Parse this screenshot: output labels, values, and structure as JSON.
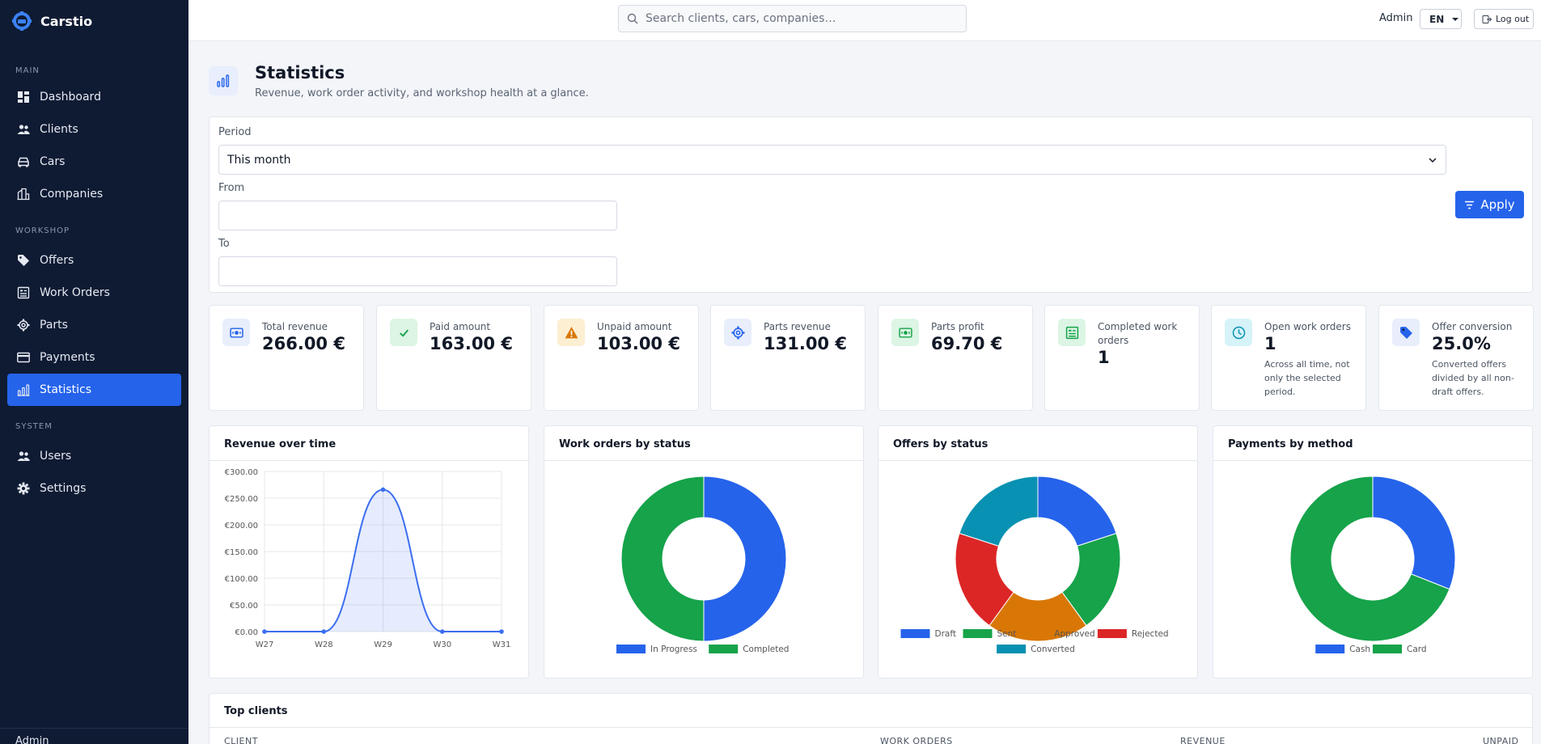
{
  "app": {
    "name": "Carstio"
  },
  "sidebar": {
    "sections": [
      {
        "title": "MAIN",
        "items": [
          {
            "label": "Dashboard",
            "icon": "dashboard-icon"
          },
          {
            "label": "Clients",
            "icon": "users-icon"
          },
          {
            "label": "Cars",
            "icon": "car-icon"
          },
          {
            "label": "Companies",
            "icon": "building-icon"
          }
        ]
      },
      {
        "title": "WORKSHOP",
        "items": [
          {
            "label": "Offers",
            "icon": "tag-icon"
          },
          {
            "label": "Work Orders",
            "icon": "clipboard-icon"
          },
          {
            "label": "Parts",
            "icon": "gear-icon"
          },
          {
            "label": "Payments",
            "icon": "credit-card-icon"
          },
          {
            "label": "Statistics",
            "icon": "chart-icon",
            "active": true
          }
        ]
      },
      {
        "title": "SYSTEM",
        "items": [
          {
            "label": "Users",
            "icon": "users-icon"
          },
          {
            "label": "Settings",
            "icon": "settings-icon"
          }
        ]
      }
    ],
    "bottom_label": "Admin"
  },
  "topbar": {
    "search_placeholder": "Search clients, cars, companies…",
    "user": "Admin",
    "language": "EN",
    "logout_label": "Log out"
  },
  "page": {
    "title": "Statistics",
    "subtitle": "Revenue, work order activity, and workshop health at a glance."
  },
  "filters": {
    "period_label": "Period",
    "period_value": "This month",
    "from_label": "From",
    "from_value": "",
    "to_label": "To",
    "to_value": "",
    "apply_label": "Apply"
  },
  "stats": [
    {
      "label": "Total revenue",
      "value": "266.00 €",
      "icon": "money-icon",
      "color": "#2563eb",
      "bg": "#e8eefb"
    },
    {
      "label": "Paid amount",
      "value": "163.00 €",
      "icon": "check-icon",
      "color": "#16a34a",
      "bg": "#dcf5e4"
    },
    {
      "label": "Unpaid amount",
      "value": "103.00 €",
      "icon": "warning-icon",
      "color": "#d97706",
      "bg": "#fcefd2"
    },
    {
      "label": "Parts revenue",
      "value": "131.00 €",
      "icon": "gear-icon",
      "color": "#2563eb",
      "bg": "#e8eefb"
    },
    {
      "label": "Parts profit",
      "value": "69.70 €",
      "icon": "money-icon",
      "color": "#16a34a",
      "bg": "#dcf5e4"
    },
    {
      "label": "Completed work orders",
      "value": "1",
      "icon": "clipboard-icon",
      "color": "#16a34a",
      "bg": "#dcf5e4"
    },
    {
      "label": "Open work orders",
      "value": "1",
      "note": "Across all time, not only the selected period.",
      "icon": "clock-icon",
      "color": "#0891b2",
      "bg": "#d5f3f8"
    },
    {
      "label": "Offer conversion",
      "value": "25.0%",
      "note": "Converted offers divided by all non-draft offers.",
      "icon": "tag-icon",
      "color": "#2563eb",
      "bg": "#e8eefb"
    }
  ],
  "chart_data": [
    {
      "title": "Revenue over time",
      "type": "area",
      "x": [
        "W27",
        "W28",
        "W29",
        "W30",
        "W31"
      ],
      "series": [
        {
          "values": [
            0,
            0,
            266,
            0,
            0
          ]
        }
      ],
      "yticks": [
        "€0.00",
        "€50.00",
        "€100.00",
        "€150.00",
        "€200.00",
        "€250.00",
        "€300.00"
      ],
      "ylim": [
        0,
        300
      ],
      "grid": true,
      "color": "#3b6ef0"
    },
    {
      "title": "Work orders by status",
      "type": "pie",
      "categories": [
        "In Progress",
        "Completed"
      ],
      "values": [
        1,
        1
      ],
      "colors": [
        "#2563eb",
        "#16a34a"
      ],
      "legend": "bottom"
    },
    {
      "title": "Offers by status",
      "type": "pie",
      "categories": [
        "Draft",
        "Sent",
        "Approved",
        "Rejected",
        "Converted"
      ],
      "values": [
        1,
        1,
        1,
        1,
        1
      ],
      "colors": [
        "#2563eb",
        "#16a34a",
        "#d97706",
        "#dc2626",
        "#0891b2"
      ],
      "legend": "bottom"
    },
    {
      "title": "Payments by method",
      "type": "pie",
      "categories": [
        "Cash",
        "Card"
      ],
      "values": [
        31,
        69
      ],
      "colors": [
        "#2563eb",
        "#16a34a"
      ],
      "legend": "bottom"
    }
  ],
  "top_clients": {
    "title": "Top clients",
    "columns": [
      "CLIENT",
      "WORK ORDERS",
      "REVENUE",
      "UNPAID"
    ]
  }
}
